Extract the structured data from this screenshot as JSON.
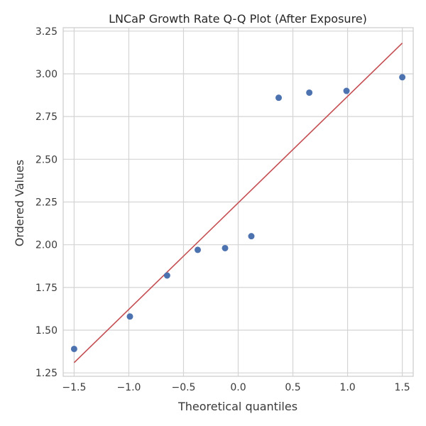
{
  "chart_data": {
    "type": "scatter",
    "title": "LNCaP Growth Rate Q-Q Plot (After Exposure)",
    "xlabel": "Theoretical quantiles",
    "ylabel": "Ordered Values",
    "xlim": [
      -1.6,
      1.6
    ],
    "ylim": [
      1.23,
      3.27
    ],
    "x_ticks": [
      -1.5,
      -1.0,
      -0.5,
      0.0,
      0.5,
      1.0,
      1.5
    ],
    "x_tick_labels": [
      "−1.5",
      "−1.0",
      "−0.5",
      "0.0",
      "0.5",
      "1.0",
      "1.5"
    ],
    "y_ticks": [
      1.25,
      1.5,
      1.75,
      2.0,
      2.25,
      2.5,
      2.75,
      3.0,
      3.25
    ],
    "y_tick_labels": [
      "1.25",
      "1.50",
      "1.75",
      "2.00",
      "2.25",
      "2.50",
      "2.75",
      "3.00",
      "3.25"
    ],
    "grid": true,
    "series": [
      {
        "kind": "points",
        "color": "#4c72b0",
        "x": [
          -1.5,
          -0.99,
          -0.65,
          -0.37,
          -0.12,
          0.12,
          0.37,
          0.65,
          0.99,
          1.5
        ],
        "y": [
          1.39,
          1.58,
          1.82,
          1.97,
          1.98,
          2.05,
          2.86,
          2.89,
          2.9,
          2.98
        ]
      },
      {
        "kind": "fit-line",
        "color": "#c44e52",
        "x": [
          -1.5,
          1.5
        ],
        "y": [
          1.31,
          3.18
        ]
      }
    ]
  }
}
